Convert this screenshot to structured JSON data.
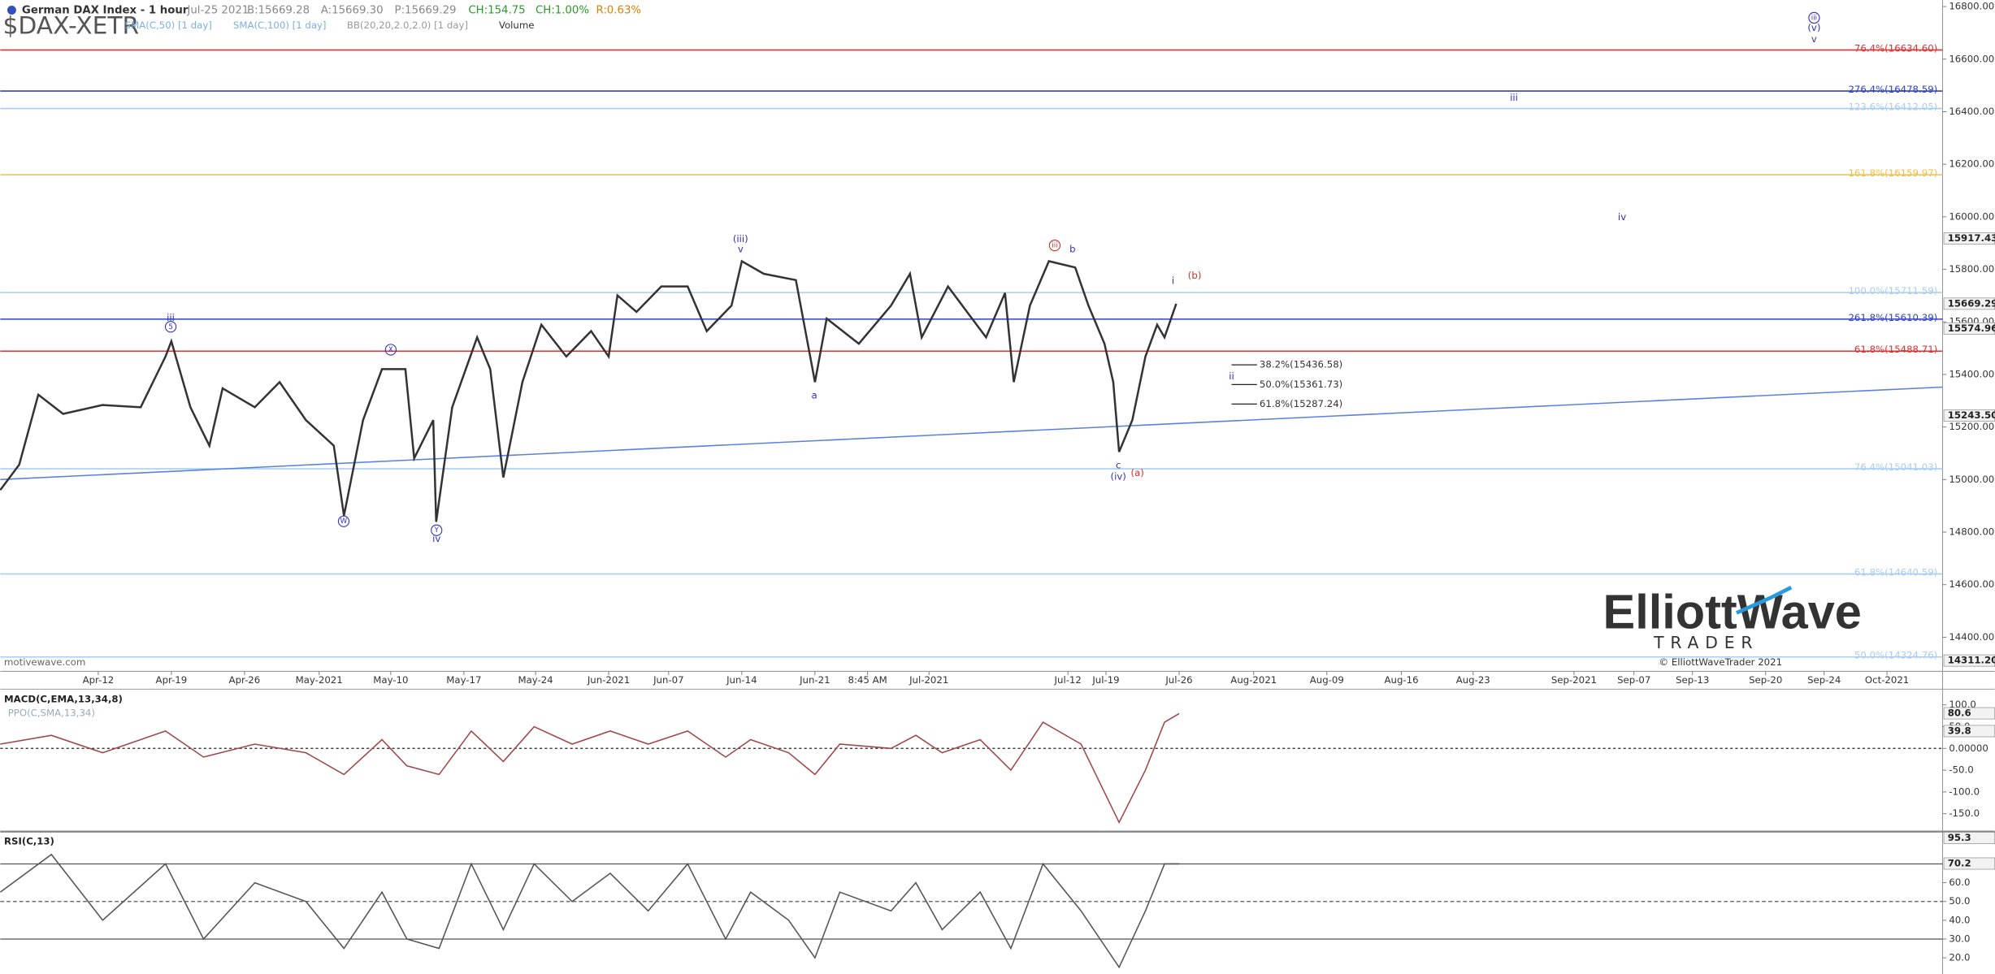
{
  "header": {
    "title": "German DAX Index - 1 hour",
    "symbol": "$DAX-XETR",
    "date": "Jul-25 2021",
    "quote": [
      "B:15669.28",
      "A:15669.30",
      "P:15669.29",
      "CH:154.75",
      "CH:1.00%",
      "R:0.63%"
    ],
    "indicators": [
      "SMA(C,50) [1 day]",
      "SMA(C,100) [1 day]",
      "BB(20,20,2.0,2.0) [1 day]",
      "Volume"
    ]
  },
  "branding": {
    "watermark": "motivewave.com",
    "logo": "ElliottWave",
    "logo_sub": "TRADER",
    "copyright": "© ElliottWaveTrader 2021"
  },
  "chart_data": [
    {
      "type": "line",
      "color": "#333333",
      "xlim": [
        -6.7,
        126.1
      ],
      "xticks": [
        {
          "value": 0,
          "label": "Apr-12"
        },
        {
          "value": 5.0,
          "label": "Apr-19"
        },
        {
          "value": 10.0,
          "label": "Apr-26"
        },
        {
          "value": 15.1,
          "label": "May-2021"
        },
        {
          "value": 20.0,
          "label": "May-10"
        },
        {
          "value": 25.0,
          "label": "May-17"
        },
        {
          "value": 29.9,
          "label": "May-24"
        },
        {
          "value": 34.9,
          "label": "Jun-2021"
        },
        {
          "value": 39.0,
          "label": "Jun-07"
        },
        {
          "value": 44.0,
          "label": "Jun-14"
        },
        {
          "value": 49.0,
          "label": "Jun-21"
        },
        {
          "value": 52.6,
          "label": "8:45 AM"
        },
        {
          "value": 56.8,
          "label": "Jul-2021"
        },
        {
          "value": 66.3,
          "label": "Jul-12"
        },
        {
          "value": 68.9,
          "label": "Jul-19"
        },
        {
          "value": 73.9,
          "label": "Jul-26"
        },
        {
          "value": 79.0,
          "label": "Aug-2021"
        },
        {
          "value": 84.0,
          "label": "Aug-09"
        },
        {
          "value": 89.1,
          "label": "Aug-16"
        },
        {
          "value": 94.0,
          "label": "Aug-23"
        },
        {
          "value": 100.9,
          "label": "Sep-2021"
        },
        {
          "value": 105.0,
          "label": "Sep-07"
        },
        {
          "value": 109.0,
          "label": "Sep-13"
        },
        {
          "value": 114.0,
          "label": "Sep-20"
        },
        {
          "value": 118.0,
          "label": "Sep-24"
        },
        {
          "value": 122.3,
          "label": "Oct-2021"
        }
      ],
      "ylim": [
        14270,
        16825
      ],
      "yticks": [
        {
          "value": 14400,
          "label": "14400.00"
        },
        {
          "value": 14600,
          "label": "14600.00"
        },
        {
          "value": 14800,
          "label": "14800.00"
        },
        {
          "value": 15000,
          "label": "15000.00"
        },
        {
          "value": 15200,
          "label": "15200.00"
        },
        {
          "value": 15400,
          "label": "15400.00"
        },
        {
          "value": 15600,
          "label": "15600.00"
        },
        {
          "value": 15800,
          "label": "15800.00"
        },
        {
          "value": 16000,
          "label": "16000.00"
        },
        {
          "value": 16200,
          "label": "16200.00"
        },
        {
          "value": 16400,
          "label": "16400.00"
        },
        {
          "value": 16600,
          "label": "16600.00"
        },
        {
          "value": 16800,
          "label": "16800.00"
        }
      ],
      "x": [
        -6.7,
        -5.4,
        -4.1,
        -2.4,
        0.3,
        2.9,
        4.6,
        5.0,
        6.3,
        7.6,
        8.5,
        10.7,
        12.4,
        14.2,
        16.1,
        16.8,
        18.1,
        19.4,
        21.0,
        21.6,
        22.9,
        23.1,
        24.2,
        25.9,
        26.8,
        27.7,
        29.0,
        30.3,
        32.0,
        33.7,
        34.9,
        35.5,
        36.8,
        38.5,
        40.3,
        41.6,
        43.3,
        44.0,
        45.5,
        47.7,
        49.0,
        49.8,
        52.0,
        54.2,
        55.5,
        56.3,
        58.1,
        60.7,
        62.0,
        62.6,
        63.7,
        65.0,
        66.8,
        67.7,
        68.8,
        69.4,
        69.8,
        70.7,
        71.6,
        72.4,
        72.9,
        73.7
      ],
      "values": [
        14960,
        15057,
        15323,
        15250,
        15284,
        15275,
        15468,
        15526,
        15275,
        15129,
        15347,
        15275,
        15371,
        15226,
        15129,
        14863,
        15226,
        15420,
        15420,
        15081,
        15226,
        14839,
        15275,
        15541,
        15420,
        15008,
        15371,
        15589,
        15468,
        15565,
        15468,
        15701,
        15638,
        15735,
        15735,
        15565,
        15662,
        15831,
        15783,
        15759,
        15371,
        15613,
        15517,
        15662,
        15783,
        15541,
        15735,
        15541,
        15710,
        15371,
        15662,
        15831,
        15807,
        15662,
        15517,
        15371,
        15105,
        15226,
        15468,
        15589,
        15541,
        15669
      ],
      "levels": [
        {
          "value": 16634.6,
          "label": "76.4%(16634.60)",
          "color": "#e03030"
        },
        {
          "value": 16478.59,
          "label": "276.4%(16478.59)",
          "color": "#3040c8"
        },
        {
          "value": 16412.05,
          "label": "123.6%(16412.05)",
          "color": "#a8cdf0"
        },
        {
          "value": 16159.97,
          "label": "161.8%(16159.97)",
          "color": "#f0c040"
        },
        {
          "value": 15711.59,
          "label": "100.0%(15711.59)",
          "color": "#a8cdf0"
        },
        {
          "value": 15610.39,
          "label": "261.8%(15610.39)",
          "color": "#3040c8"
        },
        {
          "value": 15488.71,
          "label": "61.8%(15488.71)",
          "color": "#e03030"
        },
        {
          "value": 15041.03,
          "label": "76.4%(15041.03)",
          "color": "#a8cdf0"
        },
        {
          "value": 14640.59,
          "label": "61.8%(14640.59)",
          "color": "#a8cdf0"
        },
        {
          "value": 14324.76,
          "label": "50.0%(14324.76)",
          "color": "#a8cdf0"
        }
      ],
      "retracements": [
        {
          "value": 15436.58,
          "label": "38.2%(15436.58)"
        },
        {
          "value": 15361.73,
          "label": "50.0%(15361.73)"
        },
        {
          "value": 15287.24,
          "label": "61.8%(15287.24)"
        }
      ],
      "price_markers": [
        15917.43,
        15669.29,
        15574.96,
        {
          "value": 15243.5,
          "label": "15243.50"
        },
        {
          "value": 14311.2,
          "label": "14311.20"
        }
      ],
      "trendline": {
        "x": [
          -6.7,
          126.1
        ],
        "values": [
          15000,
          15352
        ],
        "color": "#5a80e0"
      },
      "waves": [
        {
          "text": "iii",
          "color": "#3030c0"
        },
        {
          "text": "5",
          "color": "#3030c0",
          "circle": true
        },
        {
          "text": "X",
          "color": "#3030c0",
          "circle": true
        },
        {
          "text": "W",
          "color": "#3030c0",
          "circle": true
        },
        {
          "text": "Y",
          "color": "#3030c0",
          "circle": true
        },
        {
          "text": "iv",
          "color": "#3030c0"
        },
        {
          "text": "(iii)",
          "color": "#3030c0"
        },
        {
          "text": "v",
          "color": "#3030c0"
        },
        {
          "text": "a",
          "color": "#3030c0"
        },
        {
          "text": "iii",
          "color": "#d03030",
          "circle": true
        },
        {
          "text": "b",
          "color": "#3030c0"
        },
        {
          "text": "i",
          "color": "#3030c0"
        },
        {
          "text": "(b)",
          "color": "#d03030"
        },
        {
          "text": "c",
          "color": "#3030c0"
        },
        {
          "text": "(iv)",
          "color": "#3030c0"
        },
        {
          "text": "(a)",
          "color": "#d03030"
        },
        {
          "text": "ii",
          "color": "#3030c0"
        },
        {
          "text": "iii",
          "color": "#3030c0"
        },
        {
          "text": "iv",
          "color": "#3030c0"
        },
        {
          "text": "iii",
          "color": "#3030c0",
          "circle": true
        },
        {
          "text": "(v)",
          "color": "#3030c0"
        },
        {
          "text": "v",
          "color": "#3030c0"
        }
      ]
    },
    {
      "type": "line",
      "title": "MACD(C,EMA,13,34,8)",
      "subtitle": "PPO(C,SMA,13,34)",
      "color": "#a04848",
      "xlim": [
        -6.7,
        126.1
      ],
      "ylim": [
        -191,
        136
      ],
      "yticks": [
        {
          "value": 100,
          "label": "100.0"
        },
        {
          "value": 50,
          "label": "50.0"
        },
        {
          "value": 0,
          "label": "0.00000"
        },
        {
          "value": -50,
          "label": "-50.0"
        },
        {
          "value": -100,
          "label": "-100.0"
        },
        {
          "value": -150,
          "label": "-150.0"
        }
      ],
      "x": [
        -6.7,
        -3.2,
        0.3,
        4.6,
        7.2,
        10.7,
        14.2,
        16.8,
        19.4,
        21.1,
        23.3,
        25.5,
        27.7,
        29.8,
        32.4,
        35.0,
        37.6,
        40.3,
        42.9,
        44.6,
        47.2,
        49.0,
        50.7,
        54.2,
        55.9,
        57.7,
        60.3,
        62.4,
        64.6,
        67.2,
        69.8,
        71.6,
        72.9,
        73.9
      ],
      "values": [
        10,
        30,
        -10,
        40,
        -20,
        10,
        -10,
        -60,
        20,
        -40,
        -60,
        40,
        -30,
        50,
        10,
        40,
        10,
        40,
        -20,
        20,
        -10,
        -60,
        10,
        0,
        30,
        -10,
        20,
        -50,
        60,
        10,
        -170,
        -50,
        60,
        80
      ],
      "markers": [
        80.6,
        39.8
      ]
    },
    {
      "type": "line",
      "title": "RSI(C,13)",
      "color": "#555555",
      "xlim": [
        -6.7,
        126.1
      ],
      "ylim": [
        11.4,
        87.2
      ],
      "yticks": [
        {
          "value": 60,
          "label": "60.0"
        },
        {
          "value": 50,
          "label": "50.0"
        },
        {
          "value": 40,
          "label": "40.0"
        },
        {
          "value": 30,
          "label": "30.0"
        },
        {
          "value": 20,
          "label": "20.0"
        }
      ],
      "levels": [
        70,
        50,
        30
      ],
      "x": [
        -6.7,
        -3.2,
        0.3,
        4.6,
        7.2,
        10.7,
        14.2,
        16.8,
        19.4,
        21.1,
        23.3,
        25.5,
        27.7,
        29.8,
        32.4,
        35.0,
        37.6,
        40.3,
        42.9,
        44.6,
        47.2,
        49.0,
        50.7,
        54.2,
        55.9,
        57.7,
        60.3,
        62.4,
        64.6,
        67.2,
        69.8,
        71.6,
        72.9,
        73.9
      ],
      "values": [
        55,
        75,
        40,
        70,
        30,
        60,
        50,
        25,
        55,
        30,
        25,
        70,
        35,
        70,
        50,
        65,
        45,
        70,
        30,
        55,
        40,
        20,
        55,
        45,
        60,
        35,
        55,
        25,
        70,
        45,
        15,
        45,
        70,
        70
      ],
      "markers": [
        95.3,
        70.2
      ]
    }
  ]
}
